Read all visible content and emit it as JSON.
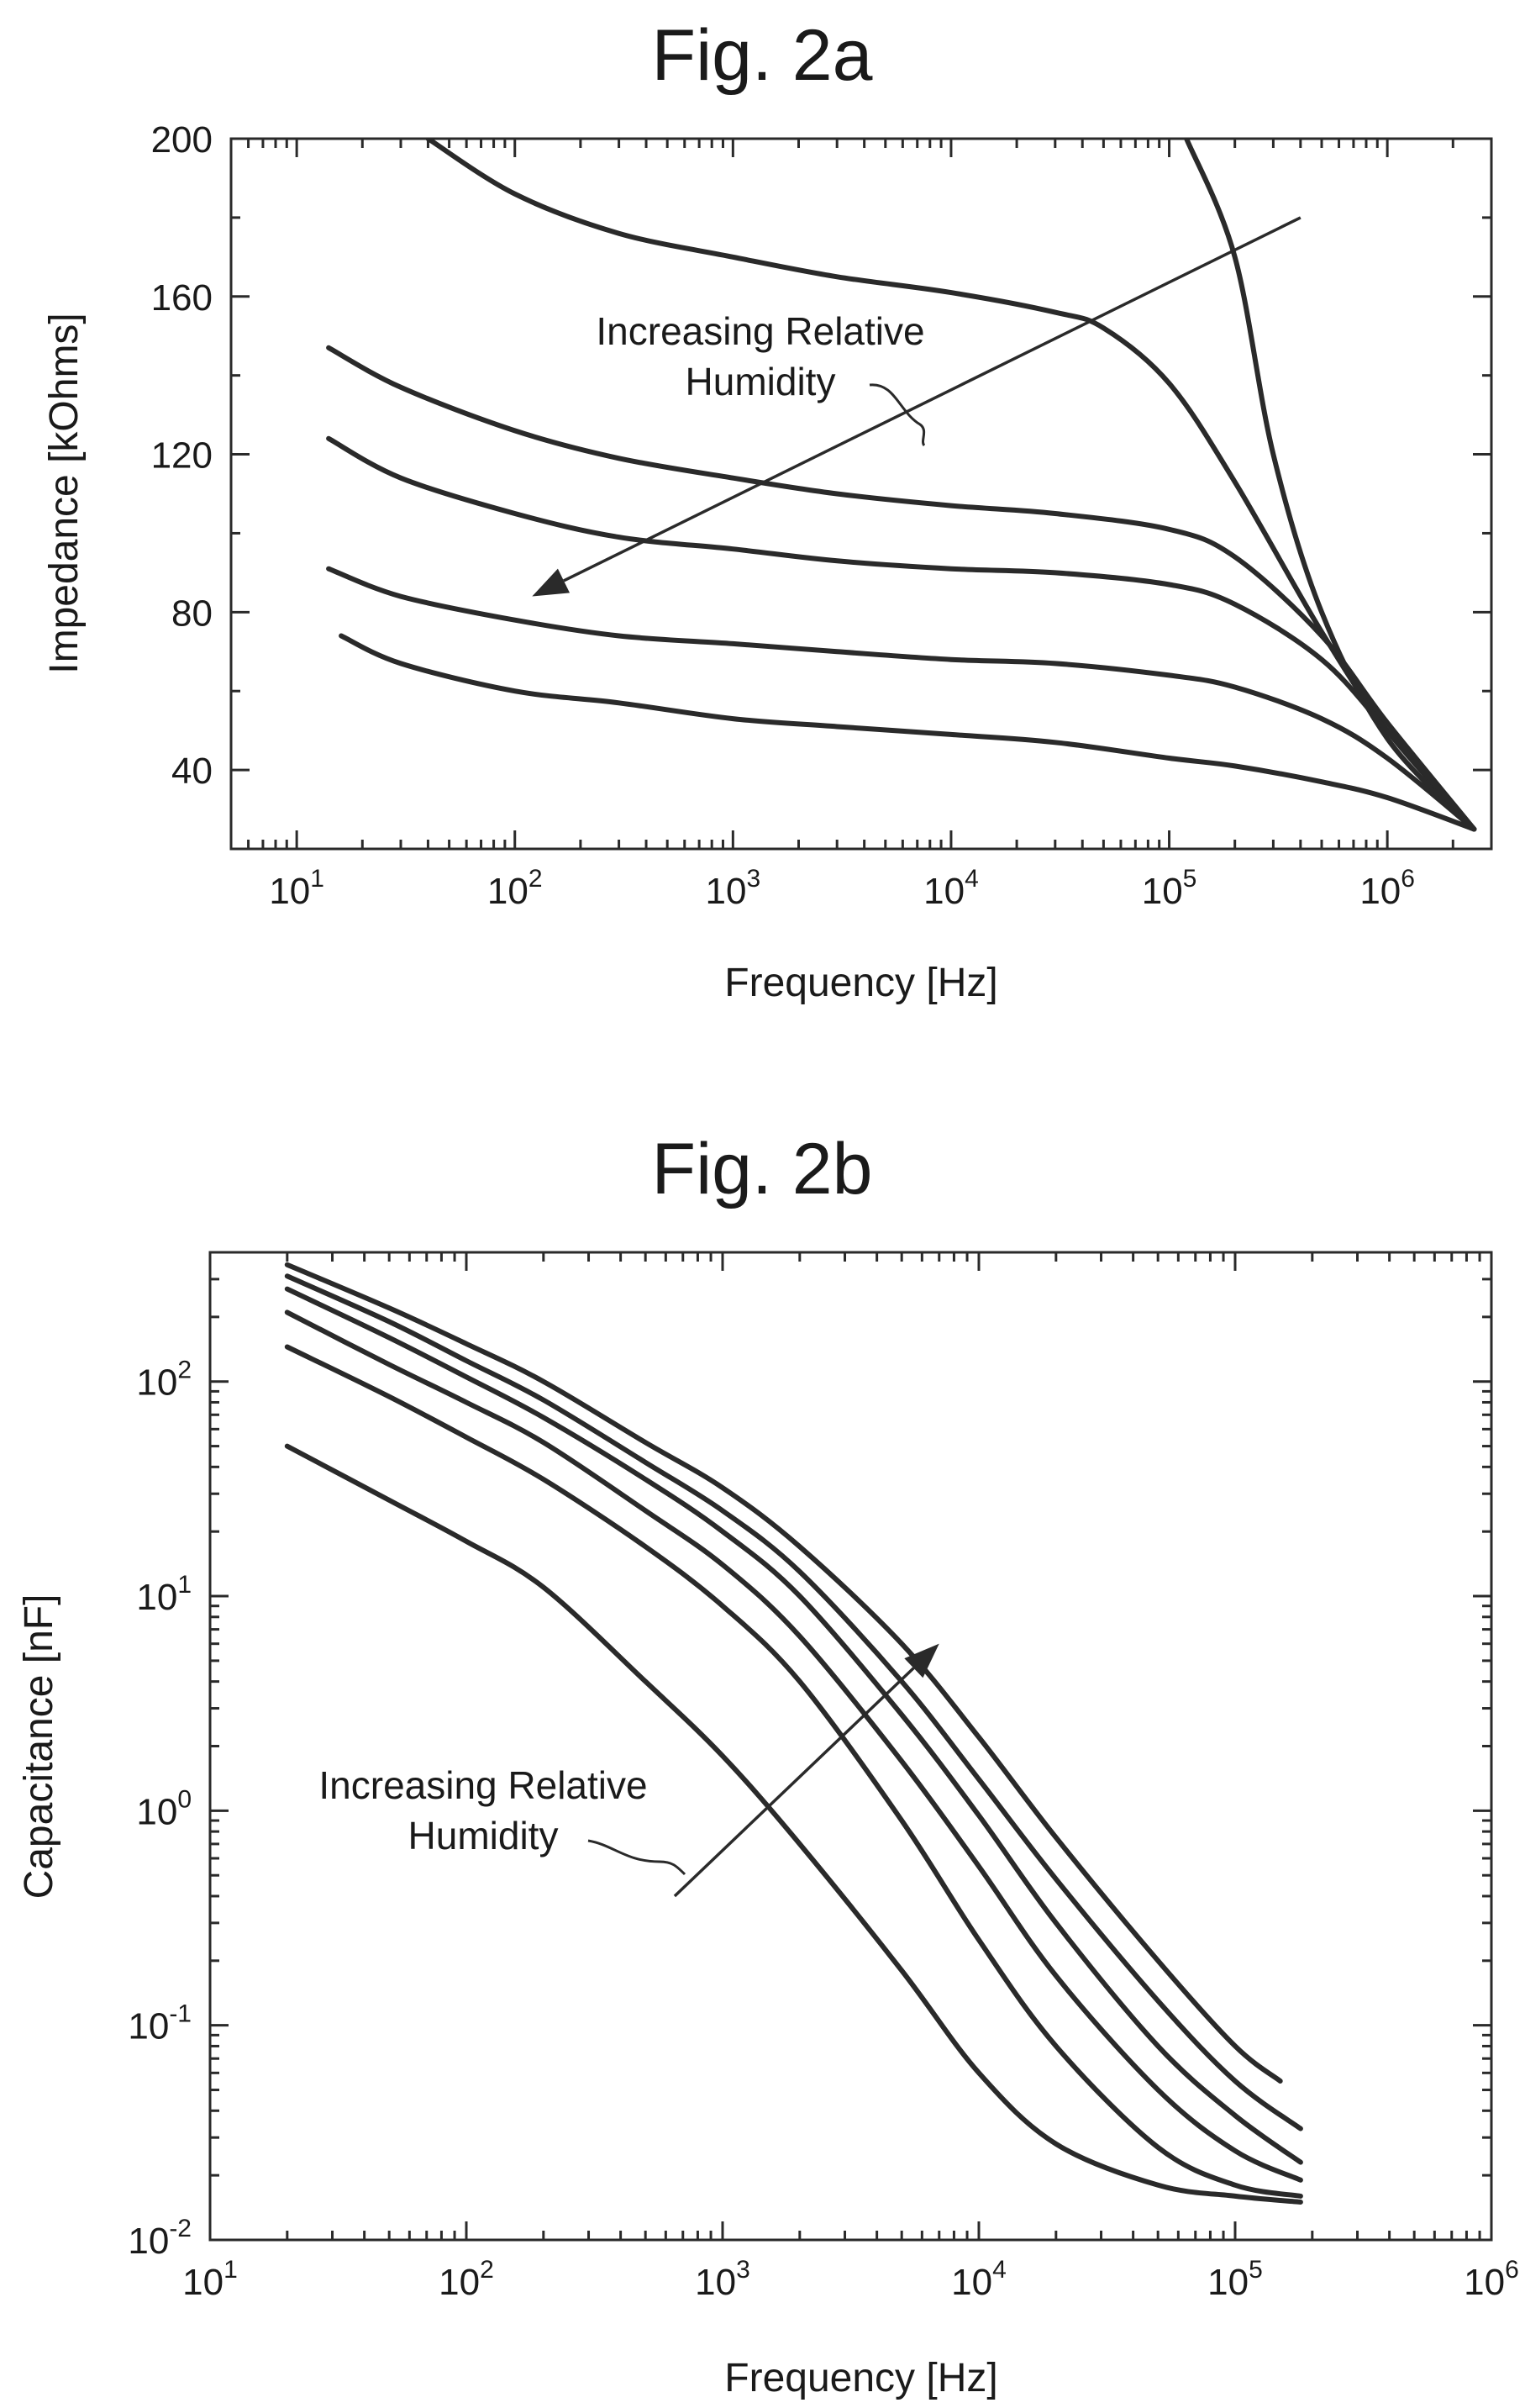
{
  "chart_data": [
    {
      "type": "line",
      "title": "Fig. 2a",
      "xlabel": "Frequency [Hz]",
      "ylabel": "Impedance [kOhms]",
      "xscale": "log",
      "yscale": "linear",
      "xlim": [
        5,
        3000000
      ],
      "ylim": [
        20,
        200
      ],
      "xticks": [
        {
          "base": "10",
          "exp": "1",
          "value": 10
        },
        {
          "base": "10",
          "exp": "2",
          "value": 100
        },
        {
          "base": "10",
          "exp": "3",
          "value": 1000
        },
        {
          "base": "10",
          "exp": "4",
          "value": 10000
        },
        {
          "base": "10",
          "exp": "5",
          "value": 100000
        },
        {
          "base": "10",
          "exp": "6",
          "value": 1000000
        }
      ],
      "yticks": [
        {
          "label": "200",
          "value": 200
        },
        {
          "label": "160",
          "value": 160
        },
        {
          "label": "120",
          "value": 120
        },
        {
          "label": "80",
          "value": 80
        },
        {
          "label": "40",
          "value": 40
        }
      ],
      "grid": false,
      "annotation": {
        "line1": "Increasing Relative",
        "line2": "Humidity"
      },
      "arrow": {
        "from": [
          400000,
          180
        ],
        "to": [
          120,
          84
        ]
      },
      "series": [
        {
          "x": [
            120000,
            200000,
            300000,
            500000,
            1000000,
            2500000
          ],
          "y": [
            200,
            170,
            120,
            80,
            48,
            25
          ]
        },
        {
          "x": [
            40,
            100,
            300,
            1000,
            3000,
            10000,
            30000,
            50000,
            100000,
            200000,
            500000,
            1000000,
            2500000
          ],
          "y": [
            200,
            186,
            176,
            170,
            165,
            161,
            156,
            152,
            138,
            113,
            75,
            50,
            25
          ]
        },
        {
          "x": [
            14,
            30,
            100,
            300,
            1000,
            3000,
            10000,
            30000,
            100000,
            200000,
            500000,
            1000000,
            2500000
          ],
          "y": [
            147,
            137,
            126,
            119,
            114,
            110,
            107,
            105,
            101,
            94,
            74,
            52,
            25
          ]
        },
        {
          "x": [
            14,
            30,
            100,
            300,
            1000,
            3000,
            10000,
            30000,
            100000,
            200000,
            500000,
            1000000,
            2500000
          ],
          "y": [
            124,
            114,
            105,
            99,
            96,
            93,
            91,
            90,
            87,
            82,
            68,
            50,
            25
          ]
        },
        {
          "x": [
            14,
            30,
            100,
            300,
            1000,
            3000,
            10000,
            30000,
            100000,
            200000,
            500000,
            1000000,
            2500000
          ],
          "y": [
            91,
            84,
            78,
            74,
            72,
            70,
            68,
            67,
            64,
            61,
            53,
            43,
            25
          ]
        },
        {
          "x": [
            16,
            30,
            100,
            300,
            1000,
            3000,
            10000,
            30000,
            100000,
            200000,
            500000,
            1000000,
            2500000
          ],
          "y": [
            74,
            67,
            60,
            57,
            53,
            51,
            49,
            47,
            43,
            41,
            37,
            33,
            25
          ]
        }
      ]
    },
    {
      "type": "line",
      "title": "Fig. 2b",
      "xlabel": "Frequency [Hz]",
      "ylabel": "Capacitance [nF]",
      "xscale": "log",
      "yscale": "log",
      "xlim": [
        10,
        1000000
      ],
      "ylim": [
        0.01,
        400
      ],
      "xticks": [
        {
          "base": "10",
          "exp": "1",
          "value": 10
        },
        {
          "base": "10",
          "exp": "2",
          "value": 100
        },
        {
          "base": "10",
          "exp": "3",
          "value": 1000
        },
        {
          "base": "10",
          "exp": "4",
          "value": 10000
        },
        {
          "base": "10",
          "exp": "5",
          "value": 100000
        },
        {
          "base": "10",
          "exp": "6",
          "value": 1000000
        }
      ],
      "yticks": [
        {
          "base": "10",
          "exp": "2",
          "value": 100
        },
        {
          "base": "10",
          "exp": "1",
          "value": 10
        },
        {
          "base": "10",
          "exp": "0",
          "value": 1
        },
        {
          "base": "10",
          "exp": "-1",
          "value": 0.1
        },
        {
          "base": "10",
          "exp": "-2",
          "value": 0.01
        }
      ],
      "grid": false,
      "annotation": {
        "line1": "Increasing Relative",
        "line2": "Humidity"
      },
      "arrow": {
        "from": [
          650,
          0.4
        ],
        "to": [
          7000,
          6
        ]
      },
      "series": [
        {
          "x": [
            20,
            50,
            100,
            200,
            500,
            1000,
            2000,
            5000,
            10000,
            20000,
            50000,
            100000,
            180000
          ],
          "y": [
            50,
            28,
            18,
            11,
            4,
            1.8,
            0.7,
            0.18,
            0.06,
            0.028,
            0.018,
            0.016,
            0.015
          ]
        },
        {
          "x": [
            20,
            50,
            100,
            200,
            500,
            1000,
            2000,
            5000,
            10000,
            20000,
            50000,
            100000,
            180000
          ],
          "y": [
            145,
            85,
            55,
            35,
            17,
            9,
            4,
            0.9,
            0.25,
            0.08,
            0.027,
            0.018,
            0.016
          ]
        },
        {
          "x": [
            20,
            50,
            100,
            200,
            500,
            1000,
            2000,
            5000,
            10000,
            20000,
            50000,
            100000,
            180000
          ],
          "y": [
            210,
            120,
            80,
            52,
            25,
            14,
            6.5,
            1.7,
            0.55,
            0.17,
            0.05,
            0.026,
            0.019
          ]
        },
        {
          "x": [
            20,
            50,
            100,
            200,
            500,
            1000,
            2000,
            5000,
            10000,
            20000,
            50000,
            100000,
            180000
          ],
          "y": [
            270,
            160,
            105,
            68,
            35,
            20,
            10,
            2.8,
            0.95,
            0.3,
            0.08,
            0.038,
            0.023
          ]
        },
        {
          "x": [
            20,
            50,
            100,
            200,
            500,
            1000,
            2000,
            5000,
            10000,
            20000,
            50000,
            100000,
            180000
          ],
          "y": [
            310,
            190,
            125,
            82,
            42,
            25,
            13,
            4,
            1.4,
            0.48,
            0.13,
            0.055,
            0.033
          ]
        },
        {
          "x": [
            20,
            50,
            100,
            200,
            500,
            1000,
            2000,
            5000,
            10000,
            20000,
            50000,
            100000,
            150000
          ],
          "y": [
            350,
            220,
            150,
            100,
            52,
            32,
            17,
            6,
            2.2,
            0.75,
            0.2,
            0.08,
            0.055
          ]
        }
      ]
    }
  ]
}
